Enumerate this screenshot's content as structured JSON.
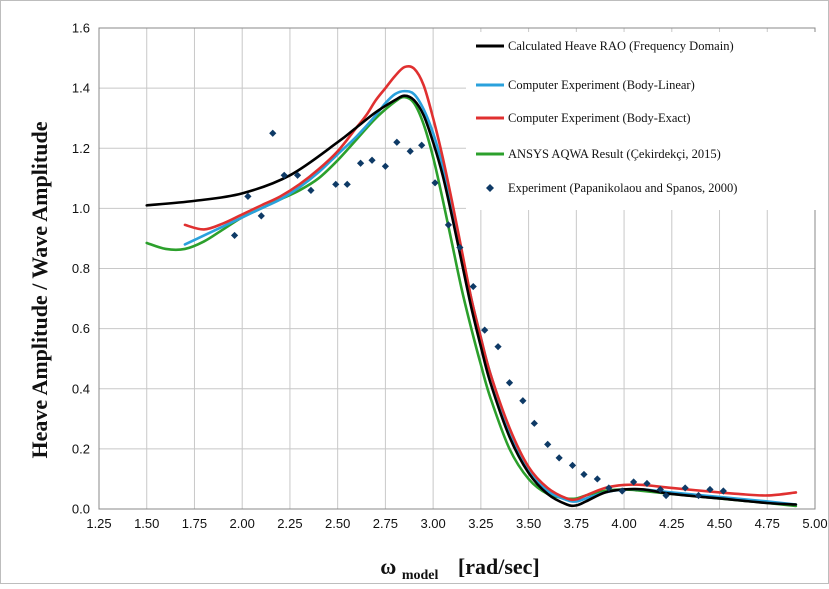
{
  "chart_data": {
    "type": "line",
    "xlabel_main": "ω",
    "xlabel_sub": "model",
    "xlabel_unit": "[rad/sec]",
    "ylabel": "Heave Amplitude / Wave Amplitude",
    "xlim": [
      1.25,
      5.0
    ],
    "ylim": [
      0,
      1.6
    ],
    "x_ticks": [
      "1.25",
      "1.50",
      "1.75",
      "2.00",
      "2.25",
      "2.50",
      "2.75",
      "3.00",
      "3.25",
      "3.50",
      "3.75",
      "4.00",
      "4.25",
      "4.50",
      "4.75",
      "5.00"
    ],
    "y_ticks": [
      "0.0",
      "0.2",
      "0.4",
      "0.6",
      "0.8",
      "1.0",
      "1.2",
      "1.4",
      "1.6"
    ],
    "grid": true,
    "legend_position": "top-right",
    "series": [
      {
        "name": "Calculated Heave RAO (Frequency Domain)",
        "color": "#000000",
        "marker": "line",
        "x": [
          1.5,
          1.75,
          2.0,
          2.25,
          2.5,
          2.6,
          2.7,
          2.8,
          2.85,
          2.9,
          2.95,
          3.0,
          3.05,
          3.1,
          3.15,
          3.2,
          3.25,
          3.3,
          3.4,
          3.5,
          3.6,
          3.7,
          3.75,
          3.8,
          3.9,
          4.0,
          4.1,
          4.25,
          4.5,
          4.75,
          4.9
        ],
        "y": [
          1.01,
          1.025,
          1.05,
          1.11,
          1.22,
          1.27,
          1.32,
          1.36,
          1.375,
          1.36,
          1.31,
          1.22,
          1.11,
          0.97,
          0.82,
          0.67,
          0.54,
          0.42,
          0.24,
          0.12,
          0.05,
          0.015,
          0.012,
          0.025,
          0.055,
          0.065,
          0.065,
          0.05,
          0.035,
          0.02,
          0.015
        ]
      },
      {
        "name": "Computer Experiment (Body-Linear)",
        "color": "#2aa1dc",
        "marker": "line",
        "x": [
          1.7,
          1.8,
          1.9,
          2.0,
          2.1,
          2.2,
          2.3,
          2.4,
          2.5,
          2.6,
          2.7,
          2.75,
          2.8,
          2.85,
          2.9,
          2.95,
          3.0,
          3.05,
          3.1,
          3.15,
          3.2,
          3.25,
          3.3,
          3.4,
          3.5,
          3.6,
          3.7,
          3.75,
          3.8,
          3.9,
          4.0,
          4.1,
          4.25,
          4.5,
          4.75,
          4.9
        ],
        "y": [
          0.88,
          0.91,
          0.94,
          0.97,
          1.0,
          1.03,
          1.07,
          1.12,
          1.18,
          1.24,
          1.31,
          1.35,
          1.38,
          1.39,
          1.38,
          1.33,
          1.25,
          1.14,
          1.0,
          0.85,
          0.7,
          0.57,
          0.45,
          0.26,
          0.13,
          0.06,
          0.03,
          0.025,
          0.035,
          0.055,
          0.065,
          0.065,
          0.055,
          0.04,
          0.025,
          0.015
        ]
      },
      {
        "name": "Computer Experiment (Body-Exact)",
        "color": "#e03030",
        "marker": "line",
        "x": [
          1.7,
          1.8,
          1.9,
          2.0,
          2.1,
          2.2,
          2.3,
          2.4,
          2.5,
          2.6,
          2.65,
          2.7,
          2.75,
          2.8,
          2.85,
          2.9,
          2.95,
          3.0,
          3.05,
          3.1,
          3.15,
          3.2,
          3.25,
          3.3,
          3.4,
          3.5,
          3.6,
          3.7,
          3.75,
          3.8,
          3.9,
          4.0,
          4.1,
          4.25,
          4.5,
          4.6,
          4.75,
          4.9
        ],
        "y": [
          0.945,
          0.93,
          0.95,
          0.98,
          1.01,
          1.04,
          1.08,
          1.13,
          1.19,
          1.27,
          1.31,
          1.36,
          1.4,
          1.44,
          1.47,
          1.465,
          1.41,
          1.3,
          1.17,
          1.02,
          0.86,
          0.7,
          0.57,
          0.45,
          0.27,
          0.14,
          0.07,
          0.035,
          0.032,
          0.045,
          0.07,
          0.08,
          0.08,
          0.07,
          0.055,
          0.05,
          0.045,
          0.055
        ]
      },
      {
        "name": "ANSYS AQWA Result (Çekirdekçi, 2015)",
        "color": "#2ca02c",
        "marker": "line",
        "x": [
          1.5,
          1.6,
          1.7,
          1.8,
          1.9,
          2.0,
          2.1,
          2.2,
          2.3,
          2.4,
          2.5,
          2.6,
          2.7,
          2.8,
          2.85,
          2.9,
          2.95,
          3.0,
          3.05,
          3.1,
          3.15,
          3.2,
          3.25,
          3.3,
          3.4,
          3.5,
          3.6,
          3.7,
          3.75,
          3.8,
          3.9,
          4.0,
          4.1,
          4.25,
          4.5,
          4.75,
          4.9
        ],
        "y": [
          0.885,
          0.865,
          0.865,
          0.89,
          0.93,
          0.97,
          1.0,
          1.03,
          1.06,
          1.1,
          1.16,
          1.23,
          1.3,
          1.355,
          1.37,
          1.35,
          1.28,
          1.17,
          1.03,
          0.88,
          0.73,
          0.6,
          0.48,
          0.37,
          0.2,
          0.1,
          0.05,
          0.035,
          0.035,
          0.045,
          0.06,
          0.065,
          0.06,
          0.05,
          0.035,
          0.02,
          0.01
        ]
      },
      {
        "name": "Experiment (Papanikolaou and Spanos, 2000)",
        "color": "#0e3a66",
        "marker": "diamond",
        "x": [
          1.96,
          2.03,
          2.1,
          2.16,
          2.22,
          2.29,
          2.36,
          2.49,
          2.55,
          2.62,
          2.68,
          2.75,
          2.81,
          2.88,
          2.94,
          3.01,
          3.08,
          3.14,
          3.21,
          3.27,
          3.34,
          3.4,
          3.47,
          3.53,
          3.6,
          3.66,
          3.73,
          3.79,
          3.86,
          3.92,
          3.99,
          4.05,
          4.12,
          4.19,
          4.22,
          4.32,
          4.39,
          4.45,
          4.52
        ],
        "y": [
          0.91,
          1.04,
          0.975,
          1.25,
          1.11,
          1.11,
          1.06,
          1.08,
          1.08,
          1.15,
          1.16,
          1.14,
          1.22,
          1.19,
          1.21,
          1.085,
          0.945,
          0.87,
          0.74,
          0.595,
          0.54,
          0.42,
          0.36,
          0.285,
          0.215,
          0.17,
          0.145,
          0.115,
          0.1,
          0.07,
          0.06,
          0.09,
          0.085,
          0.065,
          0.045,
          0.07,
          0.045,
          0.065,
          0.06
        ]
      }
    ]
  }
}
